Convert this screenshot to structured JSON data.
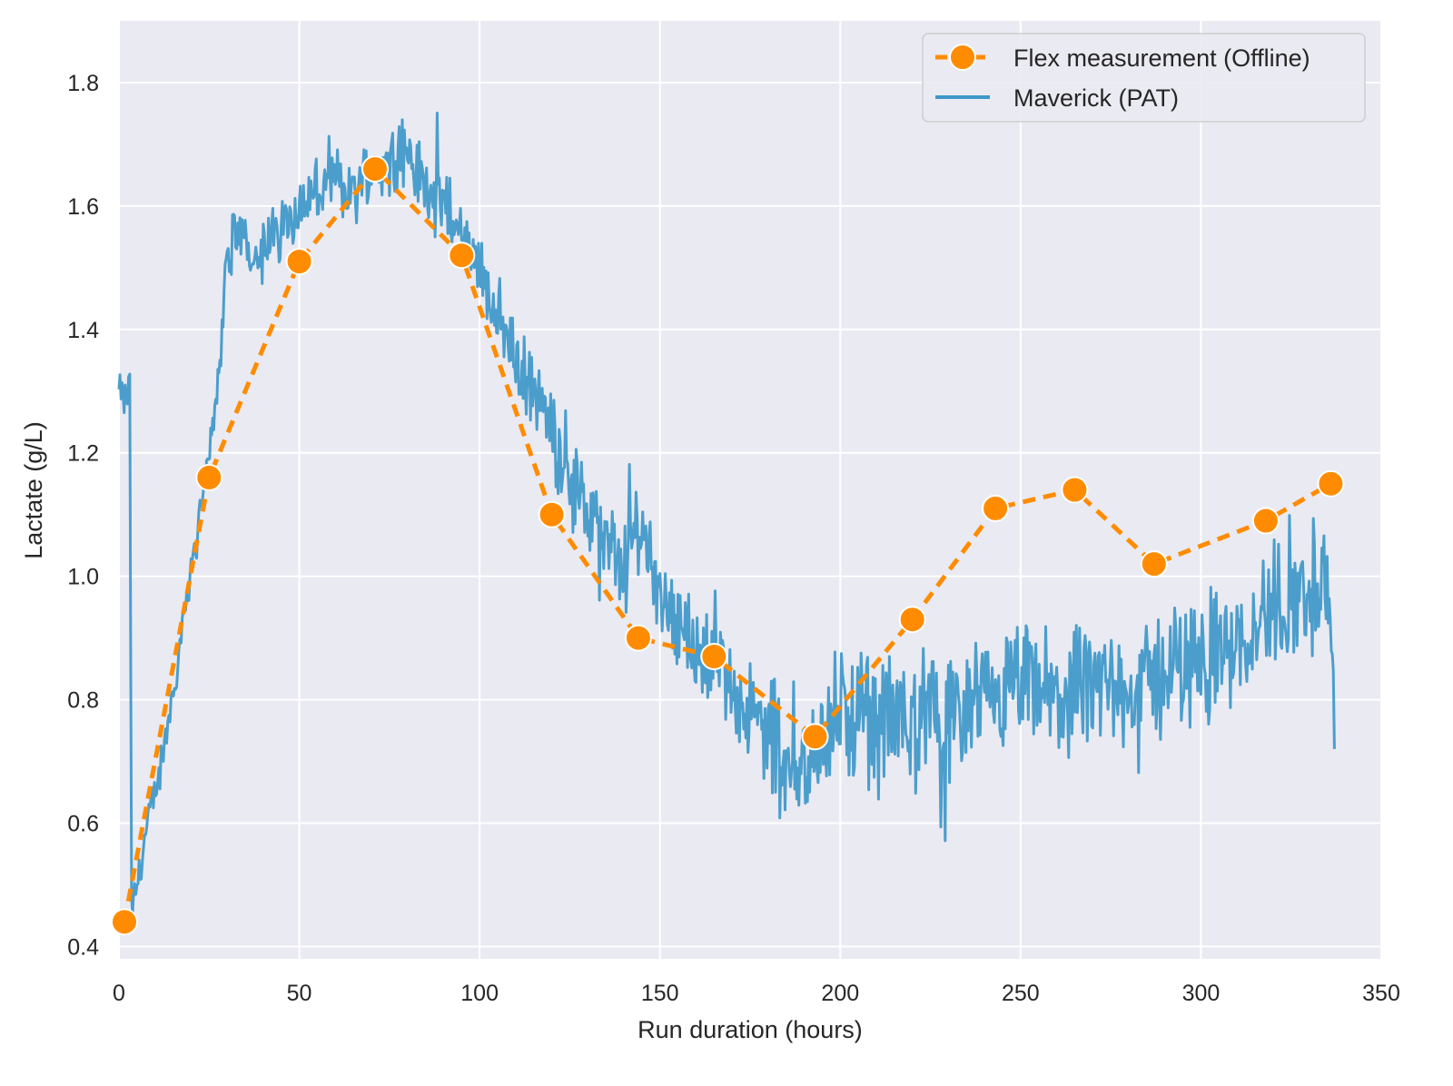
{
  "colors": {
    "background": "#eaeaf2",
    "grid": "#ffffff",
    "offline": "#ff8c00",
    "pat": "#3d97c9",
    "text": "#262626"
  },
  "chart_data": {
    "type": "line",
    "title": "",
    "xlabel": "Run duration (hours)",
    "ylabel": "Lactate (g/L)",
    "xlim": [
      0,
      350
    ],
    "ylim": [
      0.38,
      1.9
    ],
    "xticks": [
      0,
      50,
      100,
      150,
      200,
      250,
      300,
      350
    ],
    "yticks": [
      0.4,
      0.6,
      0.8,
      1.0,
      1.2,
      1.4,
      1.6,
      1.8
    ],
    "xtick_labels": [
      "0",
      "50",
      "100",
      "150",
      "200",
      "250",
      "300",
      "350"
    ],
    "ytick_labels": [
      "0.4",
      "0.6",
      "0.8",
      "1.0",
      "1.2",
      "1.4",
      "1.6",
      "1.8"
    ],
    "grid": true,
    "legend_position": "top-right",
    "series": [
      {
        "name": "Flex measurement (Offline)",
        "style": "dashed line with circle markers",
        "x": [
          1.5,
          25,
          50,
          71,
          95,
          120,
          144,
          165,
          193,
          220,
          243,
          265,
          287,
          318,
          336
        ],
        "y": [
          0.44,
          1.16,
          1.51,
          1.66,
          1.52,
          1.1,
          0.9,
          0.87,
          0.74,
          0.93,
          1.11,
          1.14,
          1.02,
          1.09,
          1.15
        ]
      },
      {
        "name": "Maverick (PAT)",
        "style": "solid noisy line",
        "x": [
          0,
          2,
          3,
          3.5,
          4,
          5,
          8,
          12,
          16,
          20,
          24,
          26,
          28,
          30,
          35,
          40,
          45,
          50,
          55,
          60,
          65,
          70,
          75,
          78,
          80,
          85,
          90,
          95,
          100,
          105,
          110,
          115,
          120,
          125,
          130,
          135,
          140,
          144,
          147,
          150,
          155,
          160,
          165,
          170,
          175,
          180,
          185,
          190,
          193,
          195,
          200,
          210,
          220,
          230,
          240,
          250,
          260,
          270,
          280,
          290,
          300,
          310,
          320,
          330,
          335,
          337
        ],
        "y": [
          1.3,
          1.28,
          1.32,
          0.46,
          0.47,
          0.5,
          0.6,
          0.7,
          0.85,
          1.02,
          1.15,
          1.25,
          1.35,
          1.52,
          1.55,
          1.52,
          1.57,
          1.6,
          1.62,
          1.64,
          1.62,
          1.66,
          1.67,
          1.7,
          1.68,
          1.63,
          1.6,
          1.55,
          1.5,
          1.43,
          1.35,
          1.3,
          1.24,
          1.18,
          1.1,
          1.05,
          1.02,
          1.08,
          1.05,
          0.98,
          0.93,
          0.88,
          0.86,
          0.82,
          0.78,
          0.74,
          0.72,
          0.7,
          0.68,
          0.76,
          0.77,
          0.76,
          0.77,
          0.76,
          0.78,
          0.82,
          0.8,
          0.82,
          0.81,
          0.84,
          0.87,
          0.9,
          0.95,
          0.98,
          1.0,
          0.72
        ]
      }
    ]
  }
}
